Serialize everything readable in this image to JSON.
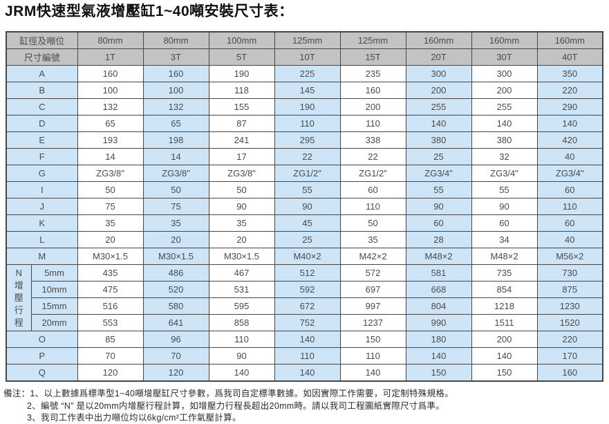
{
  "title": "JRM快速型氣液增壓缸1~40噸安裝尺寸表：",
  "colors": {
    "header-bg": "#c3c3c3",
    "header-text": "#3c3c3c",
    "stripe-blue": "#cee5f7",
    "border": "#454545",
    "cell-text": "#4a4a4a"
  },
  "table": {
    "header": {
      "row1_label": "缸徑及噸位",
      "row1_values": [
        "80mm",
        "80mm",
        "100mm",
        "125mm",
        "125mm",
        "160mm",
        "160mm",
        "160mm"
      ],
      "row2_label": "尺寸編號",
      "row2_values": [
        "1T",
        "3T",
        "5T",
        "10T",
        "15T",
        "20T",
        "30T",
        "40T"
      ]
    },
    "rows_before": [
      {
        "label": "A",
        "values": [
          "160",
          "160",
          "190",
          "225",
          "235",
          "300",
          "300",
          "350"
        ]
      },
      {
        "label": "B",
        "values": [
          "100",
          "100",
          "118",
          "145",
          "160",
          "200",
          "200",
          "220"
        ]
      },
      {
        "label": "C",
        "values": [
          "132",
          "132",
          "155",
          "190",
          "200",
          "255",
          "255",
          "290"
        ]
      },
      {
        "label": "D",
        "values": [
          "65",
          "65",
          "87",
          "110",
          "110",
          "140",
          "140",
          "140"
        ]
      },
      {
        "label": "E",
        "values": [
          "193",
          "198",
          "241",
          "295",
          "338",
          "380",
          "380",
          "420"
        ]
      },
      {
        "label": "F",
        "values": [
          "14",
          "14",
          "17",
          "22",
          "22",
          "25",
          "32",
          "40"
        ]
      },
      {
        "label": "G",
        "values": [
          "ZG3/8\"",
          "ZG3/8\"",
          "ZG3/8\"",
          "ZG1/2\"",
          "ZG1/2\"",
          "ZG3/4\"",
          "ZG3/4\"",
          "ZG3/4\""
        ]
      },
      {
        "label": "I",
        "values": [
          "50",
          "50",
          "50",
          "55",
          "60",
          "55",
          "55",
          "60"
        ]
      },
      {
        "label": "J",
        "values": [
          "75",
          "75",
          "90",
          "90",
          "110",
          "90",
          "90",
          "110"
        ]
      },
      {
        "label": "K",
        "values": [
          "35",
          "35",
          "35",
          "45",
          "50",
          "60",
          "60",
          "60"
        ]
      },
      {
        "label": "L",
        "values": [
          "20",
          "20",
          "20",
          "25",
          "35",
          "28",
          "34",
          "40"
        ]
      },
      {
        "label": "M",
        "values": [
          "M30×1.5",
          "M30×1.5",
          "M30×1.5",
          "M40×2",
          "M42×2",
          "M48×2",
          "M48×2",
          "M56×2"
        ]
      }
    ],
    "n_section": {
      "label": "N增壓行程",
      "sub_rows": [
        {
          "label": "5mm",
          "values": [
            "435",
            "486",
            "467",
            "512",
            "572",
            "581",
            "735",
            "730"
          ]
        },
        {
          "label": "10mm",
          "values": [
            "475",
            "520",
            "531",
            "592",
            "697",
            "668",
            "854",
            "875"
          ]
        },
        {
          "label": "15mm",
          "values": [
            "516",
            "580",
            "595",
            "672",
            "997",
            "804",
            "1218",
            "1230"
          ]
        },
        {
          "label": "20mm",
          "values": [
            "553",
            "641",
            "858",
            "752",
            "1237",
            "990",
            "1511",
            "1520"
          ]
        }
      ]
    },
    "rows_after": [
      {
        "label": "O",
        "values": [
          "85",
          "96",
          "110",
          "140",
          "150",
          "180",
          "200",
          "220"
        ]
      },
      {
        "label": "P",
        "values": [
          "70",
          "70",
          "90",
          "110",
          "110",
          "140",
          "140",
          "170"
        ]
      },
      {
        "label": "Q",
        "values": [
          "120",
          "120",
          "140",
          "140",
          "140",
          "150",
          "150",
          "160"
        ]
      }
    ]
  },
  "notes": {
    "prefix": "備注：",
    "items": [
      "1、以上數據爲標準型1~40噸增壓缸尺寸參數，爲我司自定標準數據。如因實際工作需要，可定制特殊規格。",
      "2、編號 “N” 是以20mm内增壓行程計算，如增壓力行程長超出20mm時。請以我司工程圖紙實際尺寸爲準。",
      "3、我司工作表中出力噸位均以6kg/cm²工作氣壓計算。"
    ]
  }
}
